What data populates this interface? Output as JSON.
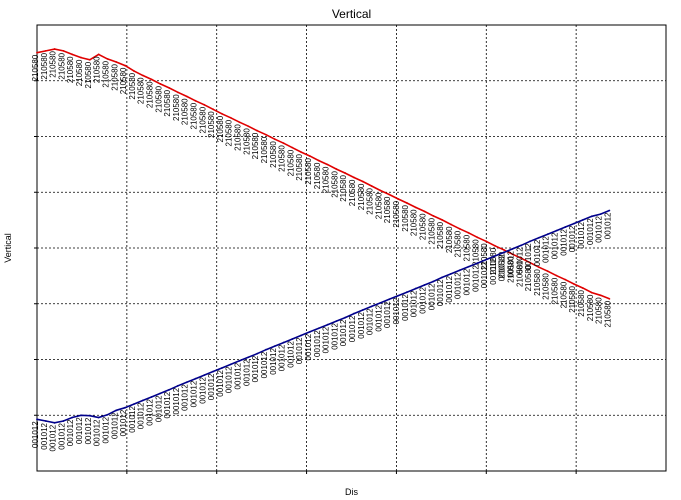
{
  "chart_data": {
    "type": "line",
    "title": "Vertical",
    "xlabel": "Dis",
    "ylabel": "Vertical",
    "grid": true,
    "legend": "none",
    "xlim": [
      0,
      1
    ],
    "ylim": [
      0,
      1
    ],
    "series": [
      {
        "color": "#e00000",
        "point_label": "210580",
        "x": [
          0.0,
          0.014,
          0.028,
          0.042,
          0.056,
          0.07,
          0.084,
          0.098,
          0.112,
          0.126,
          0.14,
          0.154,
          0.168,
          0.182,
          0.196,
          0.21,
          0.224,
          0.238,
          0.252,
          0.266,
          0.28,
          0.294,
          0.308,
          0.322,
          0.336,
          0.35,
          0.364,
          0.378,
          0.392,
          0.406,
          0.42,
          0.434,
          0.448,
          0.462,
          0.476,
          0.49,
          0.504,
          0.518,
          0.532,
          0.546,
          0.56,
          0.574,
          0.588,
          0.602,
          0.616,
          0.63,
          0.644,
          0.658,
          0.672,
          0.686,
          0.7,
          0.714,
          0.728,
          0.742,
          0.756,
          0.77,
          0.784,
          0.798,
          0.812,
          0.826,
          0.84,
          0.854,
          0.868,
          0.882,
          0.896,
          0.91
        ],
        "y": [
          0.938,
          0.942,
          0.946,
          0.942,
          0.934,
          0.927,
          0.922,
          0.934,
          0.924,
          0.917,
          0.909,
          0.897,
          0.887,
          0.878,
          0.868,
          0.859,
          0.849,
          0.84,
          0.83,
          0.821,
          0.811,
          0.801,
          0.792,
          0.782,
          0.773,
          0.763,
          0.754,
          0.744,
          0.735,
          0.725,
          0.715,
          0.706,
          0.696,
          0.687,
          0.677,
          0.668,
          0.658,
          0.649,
          0.639,
          0.629,
          0.62,
          0.61,
          0.601,
          0.591,
          0.582,
          0.572,
          0.563,
          0.553,
          0.543,
          0.534,
          0.524,
          0.515,
          0.505,
          0.496,
          0.486,
          0.477,
          0.467,
          0.457,
          0.448,
          0.438,
          0.429,
          0.419,
          0.41,
          0.4,
          0.394,
          0.386
        ]
      },
      {
        "color": "#00008b",
        "point_label": "001012",
        "x": [
          0.0,
          0.014,
          0.028,
          0.042,
          0.056,
          0.07,
          0.084,
          0.098,
          0.112,
          0.126,
          0.14,
          0.154,
          0.168,
          0.182,
          0.196,
          0.21,
          0.224,
          0.238,
          0.252,
          0.266,
          0.28,
          0.294,
          0.308,
          0.322,
          0.336,
          0.35,
          0.364,
          0.378,
          0.392,
          0.406,
          0.42,
          0.434,
          0.448,
          0.462,
          0.476,
          0.49,
          0.504,
          0.518,
          0.532,
          0.546,
          0.56,
          0.574,
          0.588,
          0.602,
          0.616,
          0.63,
          0.644,
          0.658,
          0.672,
          0.686,
          0.7,
          0.714,
          0.728,
          0.742,
          0.756,
          0.77,
          0.784,
          0.798,
          0.812,
          0.826,
          0.84,
          0.854,
          0.868,
          0.882,
          0.896,
          0.91
        ],
        "y": [
          0.116,
          0.112,
          0.108,
          0.112,
          0.12,
          0.125,
          0.124,
          0.12,
          0.126,
          0.136,
          0.142,
          0.15,
          0.158,
          0.166,
          0.174,
          0.182,
          0.191,
          0.199,
          0.207,
          0.215,
          0.223,
          0.231,
          0.239,
          0.247,
          0.255,
          0.263,
          0.272,
          0.28,
          0.288,
          0.296,
          0.304,
          0.312,
          0.32,
          0.328,
          0.336,
          0.344,
          0.353,
          0.361,
          0.369,
          0.377,
          0.385,
          0.393,
          0.401,
          0.409,
          0.417,
          0.425,
          0.434,
          0.442,
          0.45,
          0.458,
          0.466,
          0.474,
          0.482,
          0.49,
          0.498,
          0.506,
          0.515,
          0.523,
          0.531,
          0.539,
          0.547,
          0.555,
          0.563,
          0.571,
          0.576,
          0.584
        ]
      }
    ]
  }
}
